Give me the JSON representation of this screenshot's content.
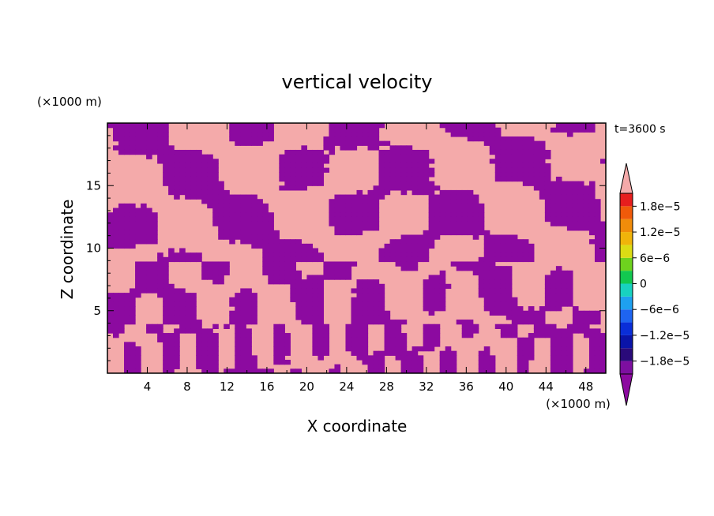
{
  "chart_data": {
    "type": "heatmap",
    "title": "vertical velocity",
    "xlabel": "X coordinate",
    "ylabel": "Z coordinate",
    "x_unit": "(×1000 m)",
    "y_unit": "(×1000 m)",
    "time_label": "t=3600 s",
    "xlim": [
      0,
      50
    ],
    "ylim": [
      0,
      20
    ],
    "x_ticks": [
      4,
      8,
      12,
      16,
      20,
      24,
      28,
      32,
      36,
      40,
      44,
      48
    ],
    "x_tick_labels": [
      "4",
      "8",
      "12",
      "16",
      "20",
      "24",
      "28",
      "32",
      "36",
      "40",
      "44",
      "48"
    ],
    "y_ticks": [
      5,
      10,
      15
    ],
    "y_tick_labels": [
      "5",
      "10",
      "15"
    ],
    "colorbar": {
      "levels": [
        -2.1e-05,
        -1.8e-05,
        -1.5e-05,
        -1.2e-05,
        -9e-06,
        -6e-06,
        -3e-06,
        0,
        3e-06,
        6e-06,
        9e-06,
        1.2e-05,
        1.5e-05,
        1.8e-05,
        2.1e-05
      ],
      "colors": [
        "#7d0fa0",
        "#2a0a7a",
        "#0a14a8",
        "#0a2ed8",
        "#1e64f0",
        "#1ea0f0",
        "#18d2c0",
        "#12c850",
        "#6ed21e",
        "#dcdc14",
        "#f0b40a",
        "#f08c0a",
        "#f05a0a",
        "#e61e1e",
        "#f4aaaa"
      ],
      "label_values": [
        "1.8e-5",
        "1.2e-5",
        "6e-6",
        "0",
        "-6e-6",
        "-1.2e-5",
        "-1.8e-5"
      ],
      "labels": [
        "1.8e−5",
        "1.2e−5",
        "6e−6",
        "0",
        "−6e−6",
        "−1.2e−5",
        "−1.8e−5"
      ],
      "under_color": "#8c0aa0",
      "over_color": "#f4aaaa"
    },
    "field_colors": {
      "positive": "#f4aaaa",
      "negative": "#8c0aa0"
    }
  }
}
